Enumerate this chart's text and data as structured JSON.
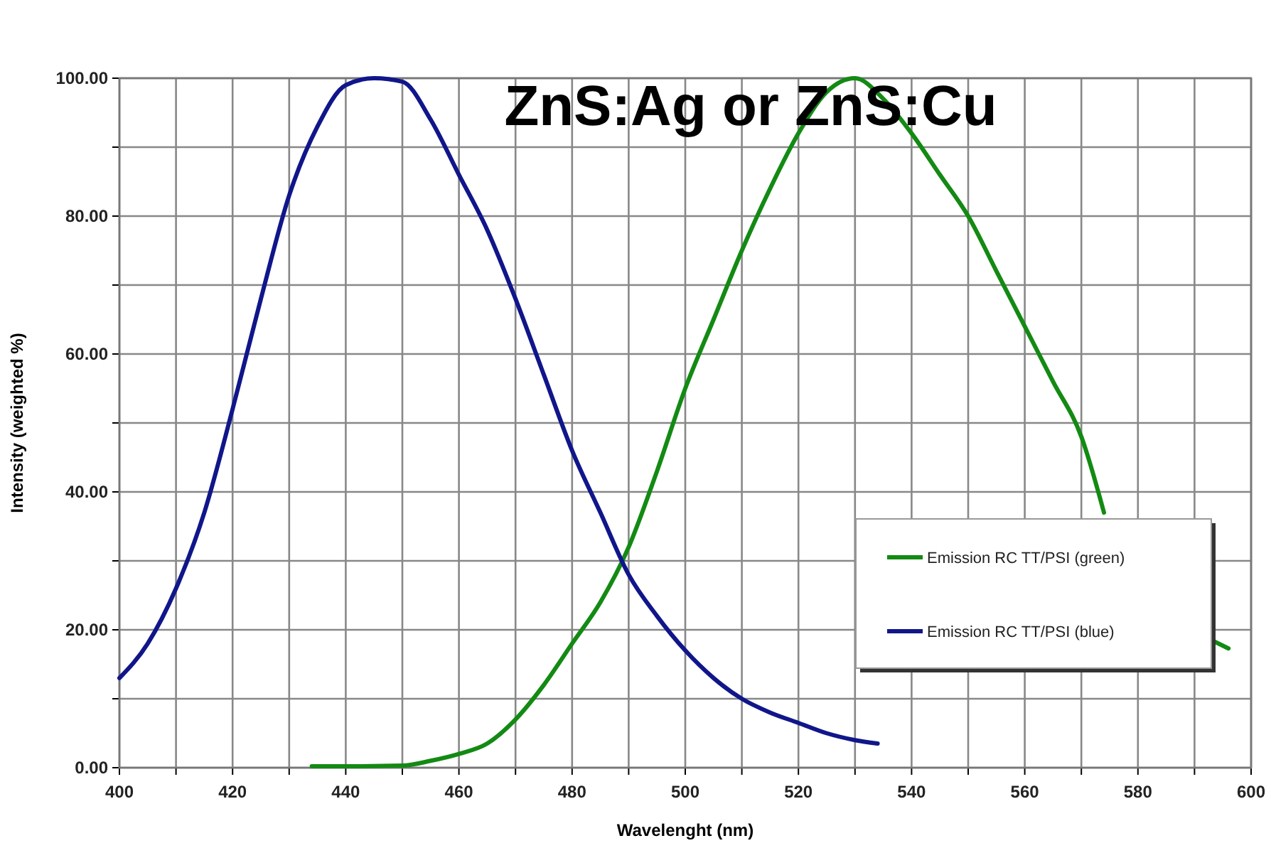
{
  "chart_data": {
    "type": "line",
    "title": "ZnS:Ag or ZnS:Cu",
    "xlabel": "Wavelenght (nm)",
    "ylabel": "Intensity (weighted %)",
    "xlim": [
      400,
      600
    ],
    "ylim": [
      0,
      100
    ],
    "xticks": [
      400,
      {
        "value": 410,
        "label": null
      },
      420,
      {
        "value": 430,
        "label": null
      },
      440,
      {
        "value": 450,
        "label": null
      },
      460,
      {
        "value": 470,
        "label": null
      },
      480,
      {
        "value": 490,
        "label": null
      },
      500,
      {
        "value": 510,
        "label": null
      },
      520,
      {
        "value": 530,
        "label": null
      },
      540,
      {
        "value": 550,
        "label": null
      },
      560,
      {
        "value": 570,
        "label": null
      },
      580,
      {
        "value": 590,
        "label": null
      },
      600
    ],
    "yticks": [
      {
        "value": 0,
        "label": "0.00"
      },
      {
        "value": 10,
        "label": null
      },
      {
        "value": 20,
        "label": "20.00"
      },
      {
        "value": 30,
        "label": null
      },
      {
        "value": 40,
        "label": "40.00"
      },
      {
        "value": 50,
        "label": null
      },
      {
        "value": 60,
        "label": "60.00"
      },
      {
        "value": 70,
        "label": null
      },
      {
        "value": 80,
        "label": "80.00"
      },
      {
        "value": 90,
        "label": null
      },
      {
        "value": 100,
        "label": "100.00"
      }
    ],
    "grid": true,
    "legend": "bottom right",
    "marker": "none",
    "line_style": "solid",
    "series": [
      {
        "name": "Emission RC TT/PSI (green)",
        "color": "#138a13",
        "x": [
          434,
          440,
          450,
          455,
          460,
          465,
          470,
          475,
          480,
          485,
          490,
          495,
          500,
          505,
          510,
          515,
          520,
          525,
          530,
          535,
          540,
          545,
          550,
          555,
          560,
          565,
          570,
          574,
          580,
          585,
          590,
          593,
          596
        ],
        "values": [
          0.2,
          0.2,
          0.3,
          1,
          2,
          3.5,
          7,
          12,
          18,
          24,
          32,
          43,
          55,
          65,
          75,
          84,
          92,
          98,
          100,
          97,
          92,
          86,
          80,
          72,
          64,
          56,
          48,
          37,
          null,
          null,
          null,
          18.5,
          17.3
        ]
      },
      {
        "name": "Emission RC TT/PSI (blue)",
        "color": "#10168a",
        "x": [
          400,
          405,
          410,
          415,
          420,
          425,
          430,
          435,
          440,
          445,
          450,
          455,
          460,
          465,
          470,
          475,
          480,
          485,
          490,
          495,
          500,
          505,
          510,
          515,
          520,
          525,
          530,
          534
        ],
        "values": [
          13,
          18,
          26,
          37,
          52,
          68,
          83,
          93,
          99,
          100,
          99.5,
          94,
          86,
          78,
          68,
          57,
          46,
          37,
          28,
          22,
          17,
          13,
          10,
          8,
          6.5,
          5,
          4,
          3.5
        ]
      }
    ]
  }
}
